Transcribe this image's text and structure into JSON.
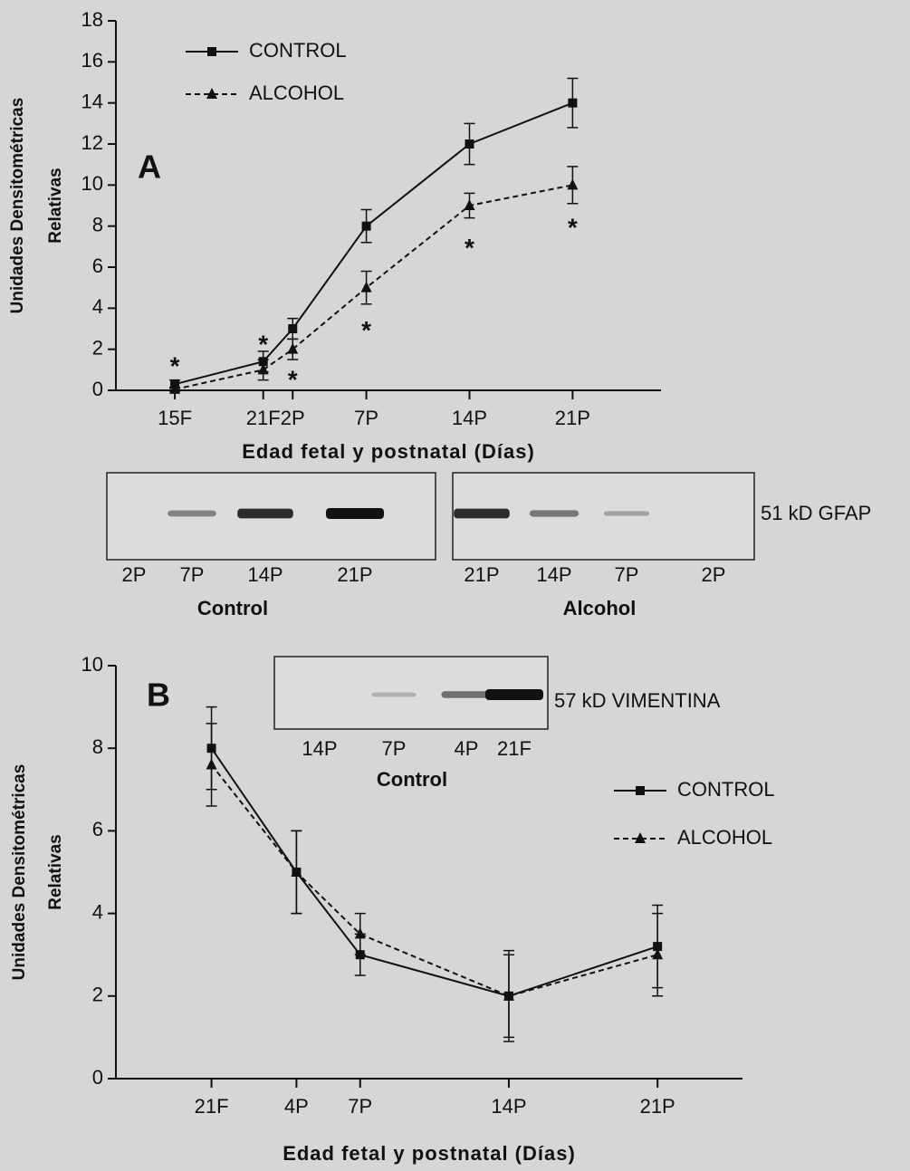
{
  "chart_data": [
    {
      "type": "line",
      "title": "A",
      "ylabel": [
        "Unidades Densitométricas",
        "Relativas"
      ],
      "xlabel": "Edad fetal y postnatal (Días)",
      "x": [
        15,
        21,
        23,
        28,
        35,
        42
      ],
      "xlim": [
        11,
        48
      ],
      "xticks": [
        {
          "value": 15,
          "label": "15F"
        },
        {
          "value": 21,
          "label": "21F"
        },
        {
          "value": 23,
          "label": "2P"
        },
        {
          "value": 28,
          "label": "7P"
        },
        {
          "value": 35,
          "label": "14P"
        },
        {
          "value": 42,
          "label": "21P"
        }
      ],
      "ylim": [
        0,
        18
      ],
      "yticks": [
        0,
        2,
        4,
        6,
        8,
        10,
        12,
        14,
        16,
        18
      ],
      "legend": "upper left",
      "series": [
        {
          "name": "CONTROL",
          "color": "#111111",
          "marker": "square",
          "line_style": "solid",
          "values": [
            0.3,
            1.4,
            3.0,
            8.0,
            12.0,
            14.0
          ],
          "errors": [
            0.2,
            0.5,
            0.5,
            0.8,
            1.0,
            1.2
          ]
        },
        {
          "name": "ALCOHOL",
          "color": "#111111",
          "marker": "triangle",
          "line_style": "dashed",
          "values": [
            0.05,
            1.0,
            2.0,
            5.0,
            9.0,
            10.0
          ],
          "errors": [
            0.1,
            0.5,
            0.5,
            0.8,
            0.6,
            0.9
          ]
        }
      ],
      "annotations": [
        {
          "text": "*",
          "x": 15,
          "y": 1.45
        },
        {
          "text": "*",
          "x": 21,
          "y": 2.5
        },
        {
          "text": "*",
          "x": 23,
          "y": 0.8
        },
        {
          "text": "*",
          "x": 28,
          "y": 3.2
        },
        {
          "text": "*",
          "x": 35,
          "y": 7.2
        },
        {
          "text": "*",
          "x": 42,
          "y": 8.2
        }
      ]
    },
    {
      "type": "line",
      "title": "B",
      "ylabel": [
        "Unidades Densitométricas",
        "Relativas"
      ],
      "xlabel": "Edad fetal y postnatal (Días)",
      "x": [
        21,
        25,
        28,
        35,
        42
      ],
      "xlim": [
        16.5,
        46
      ],
      "xticks": [
        {
          "value": 21,
          "label": "21F"
        },
        {
          "value": 25,
          "label": "4P"
        },
        {
          "value": 28,
          "label": "7P"
        },
        {
          "value": 35,
          "label": "14P"
        },
        {
          "value": 42,
          "label": "21P"
        }
      ],
      "ylim": [
        0,
        10
      ],
      "yticks": [
        0,
        2,
        4,
        6,
        8,
        10
      ],
      "legend": "center right",
      "series": [
        {
          "name": "CONTROL",
          "color": "#111111",
          "marker": "square",
          "line_style": "solid",
          "values": [
            8.0,
            5.0,
            3.0,
            2.0,
            3.2
          ],
          "errors": [
            1.0,
            1.0,
            0.5,
            1.0,
            1.0
          ]
        },
        {
          "name": "ALCOHOL",
          "color": "#111111",
          "marker": "triangle",
          "line_style": "dashed",
          "values": [
            7.6,
            5.0,
            3.5,
            2.0,
            3.0
          ],
          "errors": [
            1.0,
            1.0,
            0.5,
            1.1,
            1.0
          ]
        }
      ]
    }
  ],
  "blots": [
    {
      "label": "51 kD GFAP",
      "groups": [
        {
          "name": "Control",
          "lanes": [
            "2P",
            "7P",
            "14P",
            "21P"
          ]
        },
        {
          "name": "Alcohol",
          "lanes": [
            "21P",
            "14P",
            "7P",
            "2P"
          ]
        }
      ]
    },
    {
      "label": "57 kD VIMENTINA",
      "groups": [
        {
          "name": "Control",
          "lanes": [
            "14P",
            "7P",
            "4P",
            "21F"
          ]
        }
      ]
    }
  ]
}
